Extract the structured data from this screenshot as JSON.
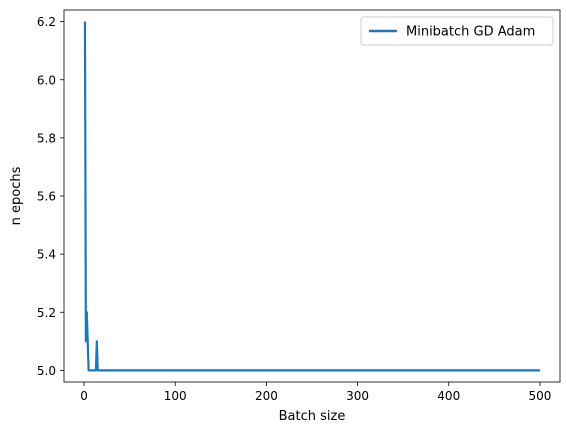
{
  "chart_data": {
    "type": "line",
    "title": "",
    "xlabel": "Batch size",
    "ylabel": "n epochs",
    "xlim": [
      -22,
      522
    ],
    "ylim": [
      4.96,
      6.24
    ],
    "xticks": [
      0,
      100,
      200,
      300,
      400,
      500
    ],
    "xtick_labels": [
      "0",
      "100",
      "200",
      "300",
      "400",
      "500"
    ],
    "yticks": [
      5.0,
      5.2,
      5.4,
      5.6,
      5.8,
      6.0,
      6.2
    ],
    "ytick_labels": [
      "5.0",
      "5.2",
      "5.4",
      "5.6",
      "5.8",
      "6.0",
      "6.2"
    ],
    "grid": false,
    "legend_position": "upper right",
    "series": [
      {
        "name": "Minibatch GD Adam",
        "color": "#1f77b4",
        "x": [
          1,
          2,
          3,
          4,
          5,
          6,
          7,
          8,
          9,
          10,
          11,
          12,
          13,
          14,
          15,
          16,
          17,
          18,
          19,
          20,
          50,
          100,
          200,
          300,
          400,
          500
        ],
        "y": [
          6.2,
          5.1,
          5.2,
          5.1,
          5.0,
          5.0,
          5.0,
          5.0,
          5.0,
          5.0,
          5.0,
          5.0,
          5.0,
          5.1,
          5.0,
          5.0,
          5.0,
          5.0,
          5.0,
          5.0,
          5.0,
          5.0,
          5.0,
          5.0,
          5.0,
          5.0
        ]
      }
    ]
  }
}
